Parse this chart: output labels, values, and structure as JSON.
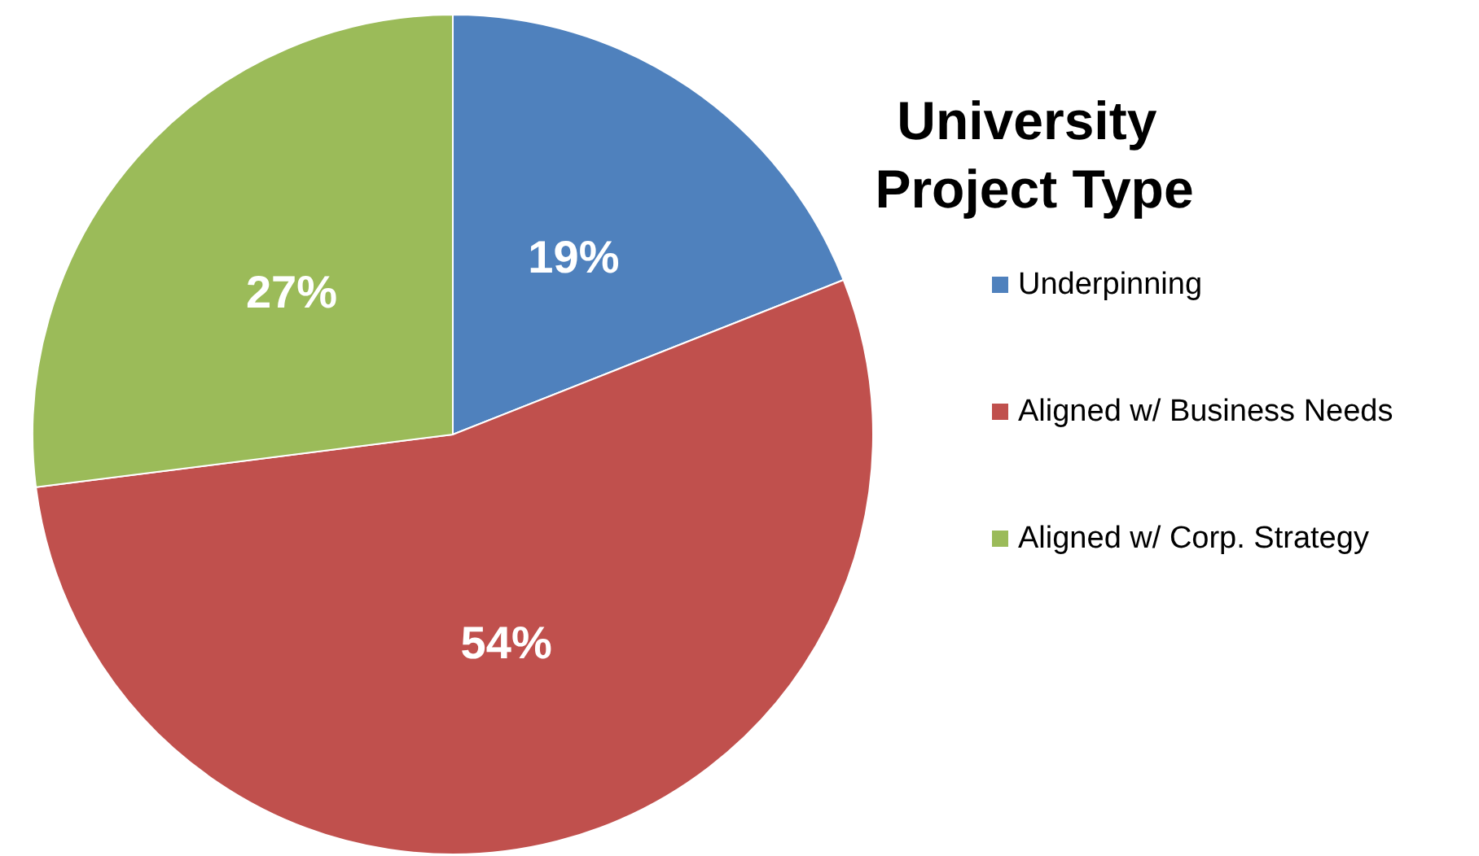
{
  "chart_data": {
    "type": "pie",
    "title": "University Project Type",
    "categories": [
      "Underpinning",
      "Aligned w/ Business Needs",
      "Aligned w/ Corp. Strategy"
    ],
    "values": [
      19,
      54,
      27
    ],
    "colors": [
      "#4f81bd",
      "#c0504d",
      "#9bbb59"
    ],
    "value_labels": [
      "19%",
      "54%",
      "27%"
    ],
    "legend": "right"
  }
}
